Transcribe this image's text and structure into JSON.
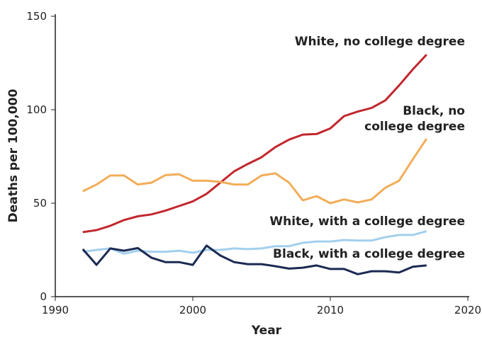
{
  "chart_data": {
    "type": "line",
    "title": "",
    "xlabel": "Year",
    "ylabel": "Deaths per 100,000",
    "xlim": [
      1990,
      2020
    ],
    "ylim": [
      0,
      150
    ],
    "xticks": [
      1990,
      2000,
      2010,
      2020
    ],
    "yticks": [
      0,
      50,
      100,
      150
    ],
    "grid": false,
    "x": [
      1992,
      1993,
      1994,
      1995,
      1996,
      1997,
      1998,
      1999,
      2000,
      2001,
      2002,
      2003,
      2004,
      2005,
      2006,
      2007,
      2008,
      2009,
      2010,
      2011,
      2012,
      2013,
      2014,
      2015,
      2016,
      2017
    ],
    "series": [
      {
        "name": "White, no college degree",
        "label_lines": [
          "White, no college degree"
        ],
        "color": "#c1272d",
        "values": [
          34.5,
          35.6,
          37.9,
          41,
          43,
          44,
          46,
          48.5,
          51,
          55,
          61,
          67,
          71,
          74.6,
          80,
          84,
          86.7,
          87,
          90,
          96.6,
          99,
          101,
          105,
          113,
          121.6,
          129.5
        ]
      },
      {
        "name": "Black, no college degree",
        "label_lines": [
          "Black, no",
          "college degree"
        ],
        "color": "#f2ad58",
        "values": [
          56.4,
          60,
          64.8,
          64.8,
          60,
          61,
          65,
          65.5,
          62,
          62,
          61.4,
          60,
          60,
          64.8,
          66,
          61,
          51.5,
          53.8,
          50,
          52,
          50.4,
          52,
          58.3,
          62,
          73.5,
          84.5
        ]
      },
      {
        "name": "White, with a college degree",
        "label_lines": [
          "White, with a college degree"
        ],
        "color": "#a3cfee",
        "values": [
          24,
          25,
          25.8,
          23,
          24.6,
          24,
          24,
          24.6,
          23.5,
          25,
          25,
          25.8,
          25.4,
          25.8,
          27,
          27,
          28.8,
          29.5,
          29.5,
          30.3,
          30,
          30,
          31.8,
          33,
          33,
          35
        ]
      },
      {
        "name": "Black, with a college degree",
        "label_lines": [
          "Black, with a college degree"
        ],
        "color": "#1b2a52",
        "values": [
          25.4,
          17,
          25.8,
          24.6,
          26,
          20.8,
          18.5,
          18.5,
          17,
          27.3,
          22,
          18.5,
          17.4,
          17.4,
          16.3,
          15,
          15.5,
          16.7,
          14.8,
          14.8,
          12,
          13.6,
          13.6,
          12.9,
          16,
          16.7
        ]
      }
    ]
  }
}
